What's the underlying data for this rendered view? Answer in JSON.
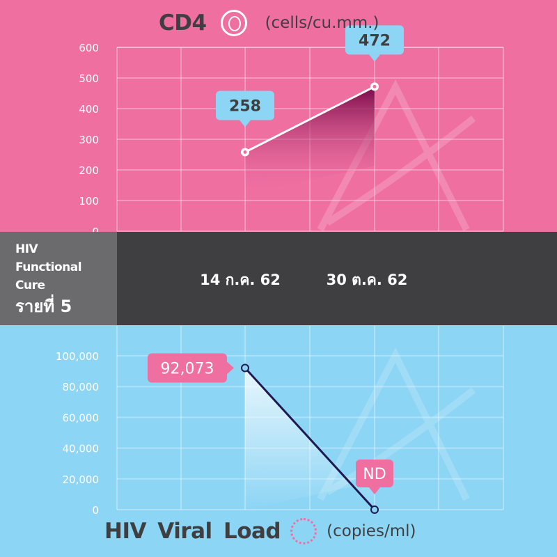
{
  "chart_data": [
    {
      "type": "line",
      "title": "CD4",
      "unit": "(cells/cu.mm.)",
      "x": [
        "14 ก.ค. 62",
        "30 ต.ค. 62"
      ],
      "values": [
        258,
        472
      ],
      "labels": [
        "258",
        "472"
      ],
      "yticks": [
        "0",
        "100",
        "200",
        "300",
        "400",
        "500",
        "600"
      ],
      "ylim": [
        0,
        600
      ],
      "grid": true,
      "colors": {
        "background": "#ef6fa1",
        "line": "#ffffff",
        "callout": "#8dd5f5",
        "fill": "#8a0f55"
      }
    },
    {
      "type": "line",
      "title": "HIV Viral Load",
      "unit": "(copies/ml)",
      "x": [
        "14 ก.ค. 62",
        "30 ต.ค. 62"
      ],
      "values": [
        92073,
        0
      ],
      "labels": [
        "92,073",
        "ND"
      ],
      "yticks": [
        "0",
        "20,000",
        "40,000",
        "60,000",
        "80,000",
        "100,000"
      ],
      "ylim": [
        0,
        100000
      ],
      "grid": true,
      "colors": {
        "background": "#8dd5f5",
        "line": "#1e1a4f",
        "callout": "#ef6fa1",
        "fill": "#ffffff"
      }
    }
  ],
  "band": {
    "line1": "HIV",
    "line2": "Functional",
    "line3": "Cure",
    "line4": "รายที่ 5",
    "dates": [
      "14 ก.ค. 62",
      "30 ต.ค. 62"
    ]
  },
  "icons": {
    "cd4": "cell-icon",
    "viral": "virus-icon"
  }
}
